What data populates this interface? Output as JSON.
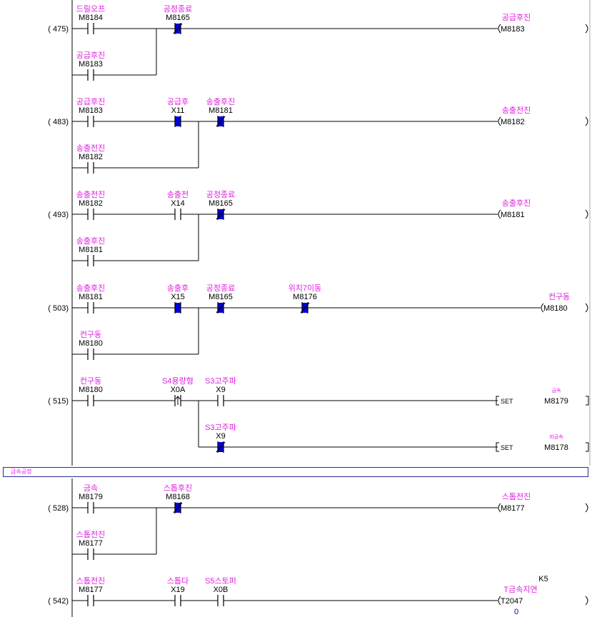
{
  "colors": {
    "comment": "#e020e0",
    "text": "#000000",
    "wire": "#000000",
    "highlight": "#0000dd",
    "border": "#2a2a9c"
  },
  "section_comment": "금속공정",
  "rungs": [
    {
      "step": "(   475)",
      "main": [
        {
          "type": "NO",
          "comment": "드릴오프",
          "device": "M8184"
        },
        {
          "type": "NC",
          "comment": "공정종료",
          "device": "M8165",
          "active": true
        }
      ],
      "branches": [
        [
          {
            "type": "NO",
            "comment": "공급후진",
            "device": "M8183"
          }
        ]
      ],
      "out": {
        "type": "coil",
        "comment": "공급후진",
        "device": "M8183"
      }
    },
    {
      "step": "(   483)",
      "main": [
        {
          "type": "NO",
          "comment": "공급후진",
          "device": "M8183"
        },
        {
          "type": "NO",
          "comment": "공급후",
          "device": "X11",
          "active": true
        },
        {
          "type": "NC",
          "comment": "송출후진",
          "device": "M8181",
          "active": true
        }
      ],
      "branches": [
        [
          {
            "type": "NO",
            "comment": "송출전진",
            "device": "M8182"
          }
        ]
      ],
      "out": {
        "type": "coil",
        "comment": "송출전진",
        "device": "M8182"
      }
    },
    {
      "step": "(   493)",
      "main": [
        {
          "type": "NO",
          "comment": "송출전진",
          "device": "M8182"
        },
        {
          "type": "NO",
          "comment": "송출전",
          "device": "X14"
        },
        {
          "type": "NC",
          "comment": "공정종료",
          "device": "M8165",
          "active": true
        }
      ],
      "branches": [
        [
          {
            "type": "NO",
            "comment": "송출후진",
            "device": "M8181"
          }
        ]
      ],
      "out": {
        "type": "coil",
        "comment": "송출후진",
        "device": "M8181"
      }
    },
    {
      "step": "(   503)",
      "main": [
        {
          "type": "NO",
          "comment": "송출후진",
          "device": "M8181"
        },
        {
          "type": "NO",
          "comment": "송출후",
          "device": "X15",
          "active": true
        },
        {
          "type": "NC",
          "comment": "공정종료",
          "device": "M8165",
          "active": true
        },
        {
          "type": "NC",
          "comment": "위치7이동",
          "device": "M8176",
          "active": true
        }
      ],
      "branches": [
        [
          {
            "type": "NO",
            "comment": "컨구동",
            "device": "M8180"
          }
        ]
      ],
      "out": {
        "type": "coil",
        "comment": "컨구동",
        "device": "M8180"
      }
    },
    {
      "step": "(   515)",
      "main": [
        {
          "type": "NO",
          "comment": "컨구동",
          "device": "M8180"
        },
        {
          "type": "PLS",
          "comment": "S4용량형",
          "device": "X0A"
        },
        {
          "type": "NO",
          "comment": "S3고주파",
          "device": "X9"
        }
      ],
      "out": {
        "type": "set",
        "label": "SET",
        "comment": "금속",
        "device": "M8179"
      },
      "out_branch": {
        "contact": {
          "type": "NC",
          "comment": "S3고주파",
          "device": "X9",
          "active": true
        },
        "out": {
          "type": "set",
          "label": "SET",
          "comment": "비금속",
          "device": "M8178"
        }
      }
    },
    {
      "step": "(   528)",
      "main": [
        {
          "type": "NO",
          "comment": "금속",
          "device": "M8179"
        },
        {
          "type": "NC",
          "comment": "스톱후진",
          "device": "M8168",
          "active": true
        }
      ],
      "branches": [
        [
          {
            "type": "NO",
            "comment": "스톱전진",
            "device": "M8177"
          }
        ]
      ],
      "out": {
        "type": "coil",
        "comment": "스톱전진",
        "device": "M8177"
      }
    },
    {
      "step": "(   542)",
      "main": [
        {
          "type": "NO",
          "comment": "스톱전진",
          "device": "M8177"
        },
        {
          "type": "NO",
          "comment": "스톱다",
          "device": "X19"
        },
        {
          "type": "NO",
          "comment": "S5스토퍼",
          "device": "X0B"
        }
      ],
      "out": {
        "type": "timer",
        "comment": "T금속지연",
        "device": "T2047",
        "setpoint": "K5",
        "current": "0"
      }
    }
  ]
}
